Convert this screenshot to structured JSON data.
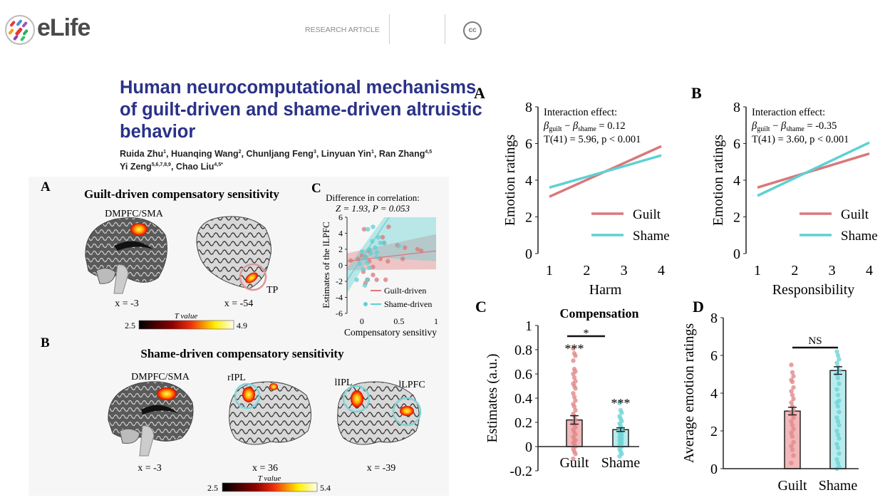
{
  "header": {
    "logo_text": "eLife",
    "article_type": "RESEARCH ARTICLE",
    "license_icon": "cc-icon",
    "title": "Human neurocomputational mechanisms of guilt-driven and shame-driven altruistic behavior",
    "authors": [
      {
        "name": "Ruida Zhu",
        "aff": "1"
      },
      {
        "name": "Huanqing Wang",
        "aff": "2"
      },
      {
        "name": "Chunljang Feng",
        "aff": "3"
      },
      {
        "name": "Linyuan Yin",
        "aff": "1"
      },
      {
        "name": "Ran Zhang",
        "aff": "4,5"
      },
      {
        "name": "Yi Zeng",
        "aff": "5,6,7,8,9"
      },
      {
        "name": "Chao Liu",
        "aff": "4,5*"
      }
    ]
  },
  "brain_figure": {
    "panel_a": {
      "label": "A",
      "title": "Guilt-driven compensatory sensitivity",
      "region_1": "DMPFC/SMA",
      "region_2": "TP",
      "coord_1": "x = -3",
      "coord_2": "x = -54",
      "colorbar": {
        "label": "T value",
        "min": "2.5",
        "max": "4.9"
      }
    },
    "panel_b": {
      "label": "B",
      "title": "Shame-driven compensatory sensitivity",
      "region_1": "DMPFC/SMA",
      "region_2": "rIPL",
      "region_3": "lIPL",
      "region_4": "lLPFC",
      "coord_1": "x = -3",
      "coord_2": "x = 36",
      "coord_3": "x = -39",
      "colorbar": {
        "label": "T value",
        "min": "2.5",
        "max": "5.4"
      }
    },
    "colors": {
      "guilt": "#d9787a",
      "shame": "#5fd0d3",
      "heat_low": "#000000",
      "heat_mid": "#e8220c",
      "heat_high": "#fffef0"
    }
  },
  "chart_data": [
    {
      "type": "scatter",
      "panel_label": "C",
      "title_line1": "Difference in correlation:",
      "title_line2": "Z = 1.93, P = 0.053",
      "xlabel": "Compensatory sensitivy",
      "ylabel": "Estimates of the lLPFC",
      "xlim": [
        -0.2,
        1
      ],
      "ylim": [
        -6,
        6
      ],
      "xticks": [
        "0",
        "0.5",
        "1"
      ],
      "yticks": [
        "-6",
        "-4",
        "-2",
        "0",
        "2",
        "4",
        "6"
      ],
      "legend_position": "bottom-right",
      "series": [
        {
          "name": "Guilt-driven",
          "color": "#d9787a",
          "fit": {
            "intercept": 0.72,
            "slope": 1.08
          },
          "points": [
            [
              0.03,
              4.5
            ],
            [
              0.36,
              4.8
            ],
            [
              0.28,
              3.5
            ],
            [
              0.48,
              2.5
            ],
            [
              0.58,
              2.2
            ],
            [
              0.75,
              2.0
            ],
            [
              0.8,
              1.8
            ],
            [
              0.3,
              2.8
            ],
            [
              -0.05,
              0.8
            ],
            [
              0,
              1.2
            ],
            [
              0.05,
              1.0
            ],
            [
              0.1,
              0.5
            ],
            [
              0.15,
              -0.2
            ],
            [
              0.02,
              -0.8
            ],
            [
              0.08,
              -1.8
            ],
            [
              0.15,
              -1.2
            ],
            [
              0.2,
              -1.8
            ],
            [
              0.32,
              -1.8
            ],
            [
              0.35,
              0.5
            ],
            [
              0.1,
              1.8
            ],
            [
              0.25,
              0.8
            ],
            [
              0.55,
              0.8
            ],
            [
              -0.15,
              0.6
            ],
            [
              0.05,
              -2.2
            ]
          ]
        },
        {
          "name": "Shame-driven",
          "color": "#5fd0d3",
          "fit": {
            "intercept": 0.9,
            "slope": 13.9
          },
          "points": [
            [
              0.08,
              4.5
            ],
            [
              0.15,
              4.8
            ],
            [
              0.14,
              3.0
            ],
            [
              0.22,
              3.5
            ],
            [
              0.25,
              2.8
            ],
            [
              0.3,
              2.8
            ],
            [
              0.18,
              2.2
            ],
            [
              0.1,
              2.0
            ],
            [
              0.2,
              1.6
            ],
            [
              0.12,
              1.5
            ],
            [
              0.0,
              1.7
            ],
            [
              0.05,
              0.9
            ],
            [
              0.07,
              0.3
            ],
            [
              -0.03,
              0.2
            ],
            [
              0.1,
              -0.3
            ],
            [
              -0.07,
              -1.8
            ],
            [
              0.07,
              -1.8
            ],
            [
              0.02,
              -0.5
            ],
            [
              0.5,
              2.4
            ],
            [
              0.2,
              1.0
            ],
            [
              0.04,
              -2.5
            ]
          ]
        }
      ]
    },
    {
      "type": "line",
      "panel_label": "A",
      "annotation": {
        "line1": "Interaction effect:",
        "beta": "β",
        "sub_guilt": "guilt",
        "minus": " − ",
        "sub_shame": "shame",
        "value": " = 0.12",
        "stat": "T(41) = 5.96, p < 0.001"
      },
      "xlabel": "Harm",
      "ylabel": "Emotion ratings",
      "xticks": [
        "1",
        "2",
        "3",
        "4"
      ],
      "yticks": [
        "0",
        "2",
        "4",
        "6",
        "8"
      ],
      "ylim": [
        0,
        8
      ],
      "legend_position": "bottom-right",
      "series": [
        {
          "name": "Guilt",
          "color": "#d9787a",
          "x": [
            1,
            4
          ],
          "y": [
            3.1,
            5.85
          ]
        },
        {
          "name": "Shame",
          "color": "#5fd0d3",
          "x": [
            1,
            4
          ],
          "y": [
            3.6,
            5.35
          ]
        }
      ]
    },
    {
      "type": "line",
      "panel_label": "B",
      "annotation": {
        "line1": "Interaction effect:",
        "beta": "β",
        "sub_guilt": "guilt",
        "minus": " − ",
        "sub_shame": "shame",
        "value": " = -0.35",
        "stat": "T(41) = 3.60, p < 0.001"
      },
      "xlabel": "Responsibility",
      "ylabel": "Emotion ratings",
      "xticks": [
        "1",
        "2",
        "3",
        "4"
      ],
      "yticks": [
        "0",
        "2",
        "4",
        "6",
        "8"
      ],
      "ylim": [
        0,
        8
      ],
      "legend_position": "bottom-right",
      "series": [
        {
          "name": "Guilt",
          "color": "#d9787a",
          "x": [
            1,
            4
          ],
          "y": [
            3.6,
            5.45
          ]
        },
        {
          "name": "Shame",
          "color": "#5fd0d3",
          "x": [
            1,
            4
          ],
          "y": [
            3.15,
            6.05
          ]
        }
      ]
    },
    {
      "type": "bar",
      "panel_label": "C",
      "title": "Compensation",
      "ylabel": "Estimates (a.u.)",
      "categories": [
        "Guilt",
        "Shame"
      ],
      "values": [
        0.22,
        0.14
      ],
      "errors": [
        0.035,
        0.015
      ],
      "ylim": [
        -0.2,
        1
      ],
      "yticks": [
        "-0.2",
        "0",
        "0.2",
        "0.4",
        "0.6",
        "0.8",
        "1"
      ],
      "bar_annotations": [
        "***",
        "***"
      ],
      "comparison": "*",
      "colors": [
        "#f2b8b9",
        "#b9ecee"
      ],
      "dot_colors": [
        "#e08a8c",
        "#6fd3d6"
      ],
      "points": [
        [
          0.81,
          0.77,
          0.75,
          0.71,
          0.64,
          0.62,
          0.6,
          0.57,
          0.54,
          0.52,
          0.5,
          0.48,
          0.44,
          0.41,
          0.38,
          0.35,
          0.33,
          0.3,
          0.27,
          0.25,
          0.22,
          0.2,
          0.18,
          0.16,
          0.14,
          0.12,
          0.1,
          0.08,
          0.06,
          0.05,
          0.03,
          0.02,
          0,
          -0.02,
          -0.04,
          -0.06,
          -0.1
        ],
        [
          0.36,
          0.3,
          0.28,
          0.25,
          0.23,
          0.21,
          0.19,
          0.17,
          0.15,
          0.14,
          0.13,
          0.12,
          0.11,
          0.1,
          0.09,
          0.08,
          0.07,
          0.06,
          0.05,
          0.04,
          0.03,
          0.02,
          0.01,
          0,
          -0.02,
          -0.04,
          -0.06,
          -0.08
        ]
      ]
    },
    {
      "type": "bar",
      "panel_label": "D",
      "ylabel": "Average emotion ratings",
      "categories": [
        "Guilt",
        "Shame"
      ],
      "values": [
        3.05,
        5.2
      ],
      "errors": [
        0.2,
        0.2
      ],
      "ylim": [
        0,
        8
      ],
      "yticks": [
        "0",
        "2",
        "4",
        "6",
        "8"
      ],
      "comparison": "NS",
      "colors": [
        "#f2b8b9",
        "#b9ecee"
      ],
      "dot_colors": [
        "#e08a8c",
        "#6fd3d6"
      ],
      "points": [
        [
          5.5,
          5.1,
          4.9,
          4.7,
          4.6,
          4.3,
          4.1,
          3.9,
          3.7,
          3.5,
          3.3,
          3.1,
          3.0,
          2.9,
          2.7,
          2.5,
          2.3,
          2.1,
          1.9,
          1.7,
          1.4,
          1.2,
          1.0,
          0.7,
          0.3
        ],
        [
          6.2,
          6.0,
          5.8,
          5.6,
          5.4,
          5.2,
          5.0,
          4.8,
          4.5,
          4.2,
          3.9,
          3.6,
          3.5,
          3.3,
          3.0,
          2.7,
          2.5,
          2.3,
          2.0,
          1.8,
          1.6,
          1.3,
          1.1,
          0.8,
          0.5,
          0.3,
          0.1,
          0
        ]
      ]
    }
  ]
}
